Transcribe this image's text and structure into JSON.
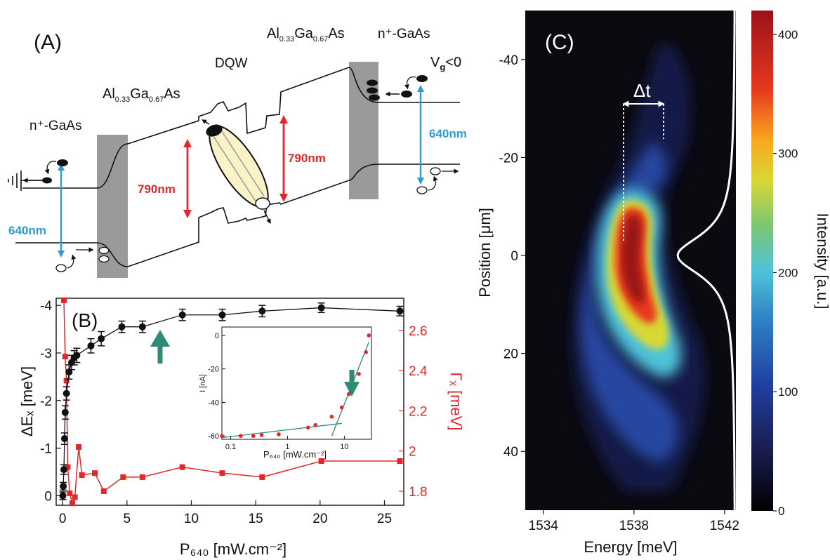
{
  "panel_a": {
    "label": "(A)",
    "left_contact": "n⁺-GaAs",
    "left_barrier": {
      "base": "Al",
      "sub1": "0.33",
      "mid": "Ga",
      "sub2": "0.67",
      "tail": "As"
    },
    "well": "DQW",
    "right_barrier": {
      "base": "Al",
      "sub1": "0.33",
      "mid": "Ga",
      "sub2": "0.67",
      "tail": "As"
    },
    "right_contact": "n⁺-GaAs",
    "gate_voltage": {
      "base": "V",
      "sub": "g",
      "tail": "<0"
    },
    "laser_left": "640nm",
    "laser_right": "640nm",
    "emission_left": "790nm",
    "emission_right": "790nm",
    "colors": {
      "laser": "#2a9bd5",
      "emission": "#e3262a",
      "barrier": "#9a9a9c",
      "exciton": "#fbf3c8"
    }
  },
  "panel_b": {
    "label": "(B)",
    "y_left_label": "ΔEₓ [meV]",
    "y_right_label": "Γₓ [meV]",
    "x_label": "P₆₄₀ [mW.cm⁻²]",
    "inset": {
      "x_label": "P₆₄₀ [mW.cm⁻²]",
      "y_label": "I [nA]"
    }
  },
  "panel_c": {
    "label": "(C)",
    "delta_label": "Δt",
    "x_label": "Energy [meV]",
    "y_label": "Position [μm]",
    "colorbar_label": "Intensity [a.u.]"
  },
  "chart_data": [
    {
      "type": "line",
      "panel": "B",
      "xlim": [
        -0.5,
        26.5
      ],
      "xticks": [
        0,
        5,
        10,
        15,
        20,
        25
      ],
      "series": [
        {
          "name": "ΔEₓ",
          "axis": "left",
          "color": "#111111",
          "ylim": [
            0.2,
            -4.15
          ],
          "yticks": [
            0,
            -1,
            -2,
            -3,
            -4
          ],
          "x": [
            0.02,
            0.05,
            0.1,
            0.15,
            0.2,
            0.3,
            0.5,
            0.7,
            0.9,
            1.1,
            2.2,
            3.0,
            4.6,
            6.2,
            9.3,
            12.4,
            15.5,
            20.1,
            26.2
          ],
          "y": [
            0.0,
            -0.2,
            -0.55,
            -1.2,
            -1.75,
            -2.15,
            -2.6,
            -2.8,
            -2.9,
            -2.95,
            -3.15,
            -3.3,
            -3.55,
            -3.55,
            -3.8,
            -3.8,
            -3.88,
            -3.95,
            -3.88
          ],
          "y_err": [
            0.08,
            0.08,
            0.1,
            0.12,
            0.14,
            0.14,
            0.15,
            0.15,
            0.15,
            0.15,
            0.15,
            0.15,
            0.12,
            0.12,
            0.12,
            0.12,
            0.12,
            0.1,
            0.1
          ]
        },
        {
          "name": "Γₓ",
          "axis": "right",
          "color": "#e3262a",
          "ylim": [
            1.73,
            2.76
          ],
          "yticks": [
            1.8,
            2,
            2.2,
            2.4,
            2.6
          ],
          "x": [
            0.1,
            0.2,
            0.3,
            0.4,
            0.55,
            0.75,
            0.95,
            1.25,
            1.5,
            2.5,
            3.2,
            4.7,
            6.2,
            9.3,
            12.4,
            15.5,
            20.1,
            26.2
          ],
          "y": [
            2.75,
            2.47,
            2.35,
            1.92,
            1.79,
            1.74,
            1.77,
            2.02,
            1.88,
            1.89,
            1.8,
            1.87,
            1.87,
            1.92,
            1.89,
            1.87,
            1.95,
            1.95
          ]
        }
      ]
    },
    {
      "type": "scatter",
      "panel": "B-inset",
      "x_scale": "log",
      "xlim": [
        0.07,
        30
      ],
      "xticks": [
        0.1,
        1,
        10
      ],
      "ylim": [
        -62,
        5
      ],
      "yticks": [
        0,
        -20,
        -40,
        -60
      ],
      "points": {
        "color": "#e3262a",
        "x": [
          0.07,
          0.15,
          0.25,
          0.35,
          0.7,
          2.3,
          3.1,
          6.0,
          9.0,
          12.0,
          15.0,
          18.0,
          24.0,
          27.0
        ],
        "y": [
          -60,
          -60,
          -60,
          -59.5,
          -59,
          -55,
          -53.5,
          -48.5,
          -43,
          -35,
          -30,
          -23,
          -10,
          0
        ]
      },
      "fits": [
        {
          "color": "#2e8a72",
          "x": [
            0.07,
            9.0
          ],
          "y": [
            -61,
            -52.5
          ]
        },
        {
          "color": "#2e8a72",
          "x": [
            6.0,
            27.0
          ],
          "y": [
            -60,
            -4
          ]
        }
      ]
    },
    {
      "type": "heatmap",
      "panel": "C",
      "x_label": "Energy [meV]",
      "y_label": "Position [μm]",
      "xlim": [
        1533.2,
        1542.5
      ],
      "xticks": [
        1534,
        1538,
        1542
      ],
      "ylim": [
        -50,
        52
      ],
      "yticks": [
        -40,
        -20,
        0,
        20,
        40
      ],
      "colorbar": {
        "min": 0,
        "max": 420,
        "ticks": [
          0,
          100,
          200,
          300,
          400
        ]
      },
      "ridge": {
        "y": [
          -35,
          -25,
          -18,
          -12,
          -8,
          -4,
          0,
          4,
          8,
          12,
          16,
          20,
          26,
          32
        ],
        "x": [
          1539.5,
          1539.4,
          1538.6,
          1538.0,
          1537.9,
          1537.8,
          1537.7,
          1537.8,
          1538.1,
          1538.5,
          1538.9,
          1539.2,
          1539.5,
          1539.6
        ],
        "intensity": [
          40,
          70,
          150,
          300,
          400,
          410,
          400,
          420,
          380,
          300,
          220,
          150,
          100,
          70
        ]
      },
      "profile_center_y": 0
    }
  ]
}
